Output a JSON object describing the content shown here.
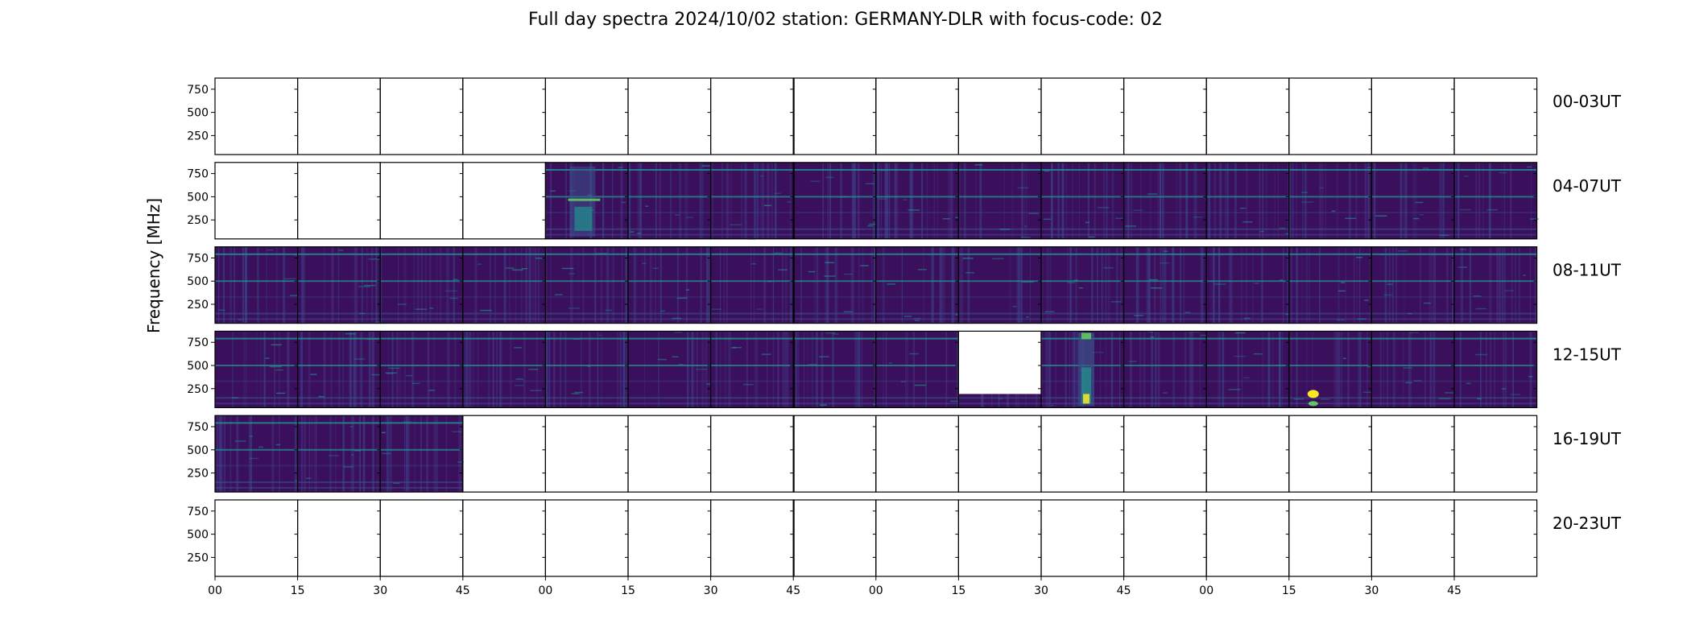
{
  "chart_data": {
    "type": "heatmap",
    "title": "Full day spectra 2024/10/02 station: GERMANY-DLR with focus-code: 02",
    "ylabel": "Frequency [MHz]",
    "xlabel": "",
    "ytick_labels": [
      "750",
      "500",
      "250"
    ],
    "yticks": [
      750,
      500,
      250
    ],
    "ylim": [
      45,
      870
    ],
    "xtick_labels": [
      "00",
      "15",
      "30",
      "45",
      "00",
      "15",
      "30",
      "45",
      "00",
      "15",
      "30",
      "45",
      "00",
      "15",
      "30",
      "45"
    ],
    "rows": [
      {
        "label": "00-03UT",
        "panels": [
          "empty",
          "empty",
          "empty",
          "empty",
          "empty",
          "empty",
          "empty",
          "empty",
          "empty",
          "empty",
          "empty",
          "empty",
          "empty",
          "empty",
          "empty",
          "empty"
        ]
      },
      {
        "label": "04-07UT",
        "panels": [
          "empty",
          "empty",
          "empty",
          "empty",
          "data-strong",
          "data",
          "data",
          "data",
          "data",
          "data",
          "data",
          "data",
          "data",
          "data",
          "data",
          "data"
        ]
      },
      {
        "label": "08-11UT",
        "panels": [
          "data",
          "data",
          "data",
          "data",
          "data",
          "data",
          "data",
          "data",
          "data",
          "data",
          "data",
          "data",
          "data",
          "data",
          "data",
          "data"
        ]
      },
      {
        "label": "12-15UT",
        "panels": [
          "data",
          "data",
          "data",
          "data",
          "data",
          "data",
          "data",
          "data",
          "data",
          "data-gap",
          "data-burst",
          "data",
          "data",
          "data-spot",
          "data",
          "data"
        ]
      },
      {
        "label": "16-19UT",
        "panels": [
          "data",
          "data",
          "data",
          "empty",
          "empty",
          "empty",
          "empty",
          "empty",
          "empty",
          "empty",
          "empty",
          "empty",
          "empty",
          "empty",
          "empty",
          "empty"
        ]
      },
      {
        "label": "20-23UT",
        "panels": [
          "empty",
          "empty",
          "empty",
          "empty",
          "empty",
          "empty",
          "empty",
          "empty",
          "empty",
          "empty",
          "empty",
          "empty",
          "empty",
          "empty",
          "empty",
          "empty"
        ]
      }
    ],
    "colormap": [
      "#440154",
      "#3b528b",
      "#21918c",
      "#5ec962",
      "#fde725"
    ]
  }
}
